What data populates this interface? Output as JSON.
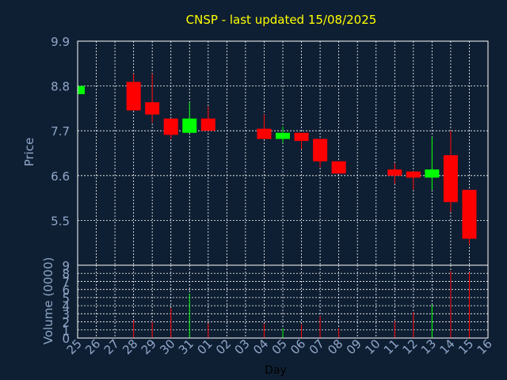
{
  "chart_data": {
    "type": "candlestick",
    "title": "CNSP - last updated 15/08/2025",
    "ylabel": "Price",
    "xlabel": "Day",
    "volume_label": "Volume (0000)",
    "ylim": [
      4.4,
      9.9
    ],
    "price_ticks": [
      "9.9",
      "8.8",
      "7.7",
      "6.6",
      "5.5"
    ],
    "volume_ylim": [
      0,
      9
    ],
    "volume_ticks": [
      "0",
      "1",
      "2",
      "3",
      "4",
      "5",
      "6",
      "7",
      "8",
      "9"
    ],
    "x_labels": [
      "25",
      "26",
      "27",
      "28",
      "29",
      "30",
      "31",
      "01",
      "02",
      "03",
      "04",
      "05",
      "06",
      "07",
      "08",
      "09",
      "10",
      "11",
      "12",
      "13",
      "14",
      "15",
      "16"
    ],
    "colors": {
      "up": "#00ff00",
      "down": "#ff0000",
      "title": "#ffff00",
      "axis_text": "#8fa7c9",
      "grid": "#ffffff",
      "background": "#0f1f33"
    },
    "candles": [
      {
        "day": "25",
        "open": 8.6,
        "close": 8.8,
        "high": 8.8,
        "low": 8.6,
        "volume": 0
      },
      {
        "day": "28",
        "open": 8.9,
        "close": 8.2,
        "high": 9.1,
        "low": 8.2,
        "volume": 2.2
      },
      {
        "day": "29",
        "open": 8.4,
        "close": 8.1,
        "high": 9.1,
        "low": 7.9,
        "volume": 2.0
      },
      {
        "day": "30",
        "open": 8.0,
        "close": 7.6,
        "high": 8.0,
        "low": 7.5,
        "volume": 3.7
      },
      {
        "day": "31",
        "open": 7.65,
        "close": 8.0,
        "high": 8.4,
        "low": 7.65,
        "volume": 5.5
      },
      {
        "day": "01",
        "open": 8.0,
        "close": 7.7,
        "high": 8.3,
        "low": 7.7,
        "volume": 1.8
      },
      {
        "day": "04",
        "open": 7.75,
        "close": 7.5,
        "high": 8.1,
        "low": 7.5,
        "volume": 1.8
      },
      {
        "day": "05",
        "open": 7.5,
        "close": 7.65,
        "high": 7.8,
        "low": 7.4,
        "volume": 1.2
      },
      {
        "day": "06",
        "open": 7.65,
        "close": 7.45,
        "high": 7.65,
        "low": 7.25,
        "volume": 1.7
      },
      {
        "day": "07",
        "open": 7.5,
        "close": 6.95,
        "high": 7.5,
        "low": 6.8,
        "volume": 2.7
      },
      {
        "day": "08",
        "open": 6.95,
        "close": 6.65,
        "high": 6.95,
        "low": 6.65,
        "volume": 1.2
      },
      {
        "day": "11",
        "open": 6.75,
        "close": 6.6,
        "high": 6.9,
        "low": 6.4,
        "volume": 2.1
      },
      {
        "day": "12",
        "open": 6.7,
        "close": 6.55,
        "high": 6.7,
        "low": 6.25,
        "volume": 3.2
      },
      {
        "day": "13",
        "open": 6.55,
        "close": 6.75,
        "high": 7.55,
        "low": 6.25,
        "volume": 4.1
      },
      {
        "day": "14",
        "open": 7.1,
        "close": 5.95,
        "high": 7.7,
        "low": 5.7,
        "volume": 8.3
      },
      {
        "day": "15",
        "open": 6.25,
        "close": 5.05,
        "high": 6.25,
        "low": 4.9,
        "volume": 8.1
      }
    ]
  }
}
